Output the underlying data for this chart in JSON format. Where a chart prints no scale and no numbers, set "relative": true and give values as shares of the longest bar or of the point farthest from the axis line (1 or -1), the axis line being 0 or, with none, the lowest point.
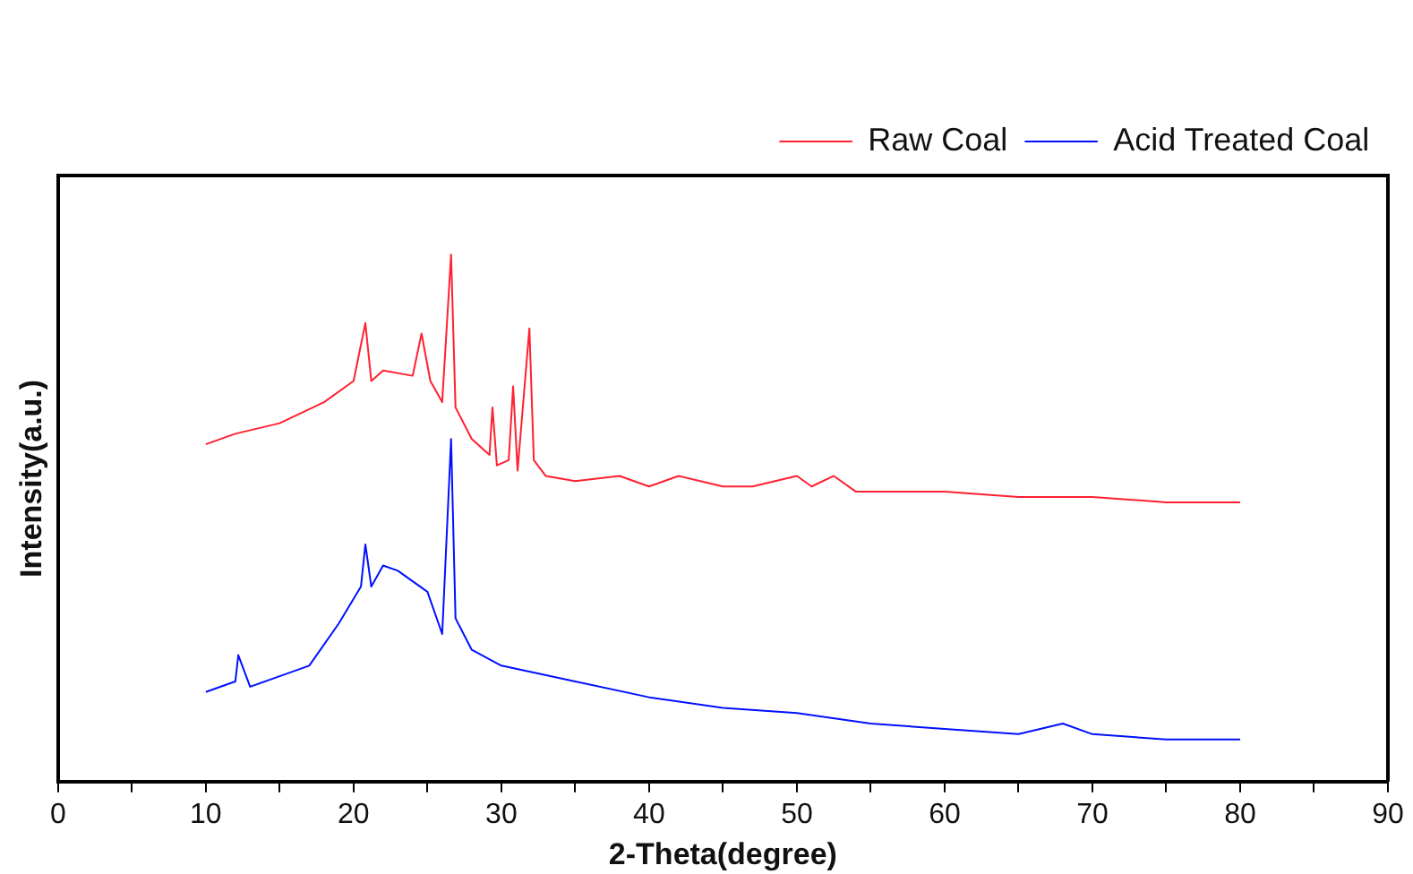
{
  "chart_data": {
    "type": "line",
    "xlabel": "2-Theta(degree)",
    "ylabel": "Intensity(a.u.)",
    "relative": true,
    "xlim": [
      0,
      90
    ],
    "xticks": [
      0,
      {
        "value": 5,
        "label": null
      },
      10,
      {
        "value": 15,
        "label": null
      },
      20,
      {
        "value": 25,
        "label": null
      },
      30,
      {
        "value": 35,
        "label": null
      },
      40,
      {
        "value": 45,
        "label": null
      },
      50,
      {
        "value": 55,
        "label": null
      },
      60,
      {
        "value": 65,
        "label": null
      },
      70,
      {
        "value": 75,
        "label": null
      },
      80,
      {
        "value": 85,
        "label": null
      },
      90
    ],
    "grid": false,
    "legend": "top right",
    "marker": "none",
    "line_style": "solid",
    "series": [
      {
        "name": "Raw Coal",
        "color": "#ff2030",
        "x": [
          10,
          12,
          15,
          18,
          20,
          20.8,
          21.2,
          22,
          24,
          24.6,
          25.2,
          26,
          26.6,
          26.9,
          28,
          29.2,
          29.4,
          29.7,
          30.5,
          30.8,
          31.1,
          31.9,
          32.2,
          33,
          35,
          38,
          40,
          42,
          45,
          47,
          50,
          51,
          52.5,
          54,
          56,
          60,
          65,
          70,
          75,
          80
        ],
        "values": [
          0.64,
          0.66,
          0.68,
          0.72,
          0.76,
          0.87,
          0.76,
          0.78,
          0.77,
          0.85,
          0.76,
          0.72,
          1.0,
          0.71,
          0.65,
          0.62,
          0.71,
          0.6,
          0.61,
          0.75,
          0.59,
          0.86,
          0.61,
          0.58,
          0.57,
          0.58,
          0.56,
          0.58,
          0.56,
          0.56,
          0.58,
          0.56,
          0.58,
          0.55,
          0.55,
          0.55,
          0.54,
          0.54,
          0.53,
          0.53
        ]
      },
      {
        "name": "Acid Treated Coal",
        "color": "#0010ff",
        "x": [
          10,
          12,
          12.2,
          13,
          15,
          17,
          19,
          20.5,
          20.8,
          21.2,
          22,
          23,
          24,
          25,
          26,
          26.6,
          26.9,
          28,
          30,
          35,
          40,
          45,
          50,
          55,
          60,
          65,
          68,
          70,
          75,
          80
        ],
        "values": [
          0.17,
          0.19,
          0.24,
          0.18,
          0.2,
          0.22,
          0.3,
          0.37,
          0.45,
          0.37,
          0.41,
          0.4,
          0.38,
          0.36,
          0.28,
          0.65,
          0.31,
          0.25,
          0.22,
          0.19,
          0.16,
          0.14,
          0.13,
          0.11,
          0.1,
          0.09,
          0.11,
          0.09,
          0.08,
          0.08
        ]
      }
    ]
  }
}
